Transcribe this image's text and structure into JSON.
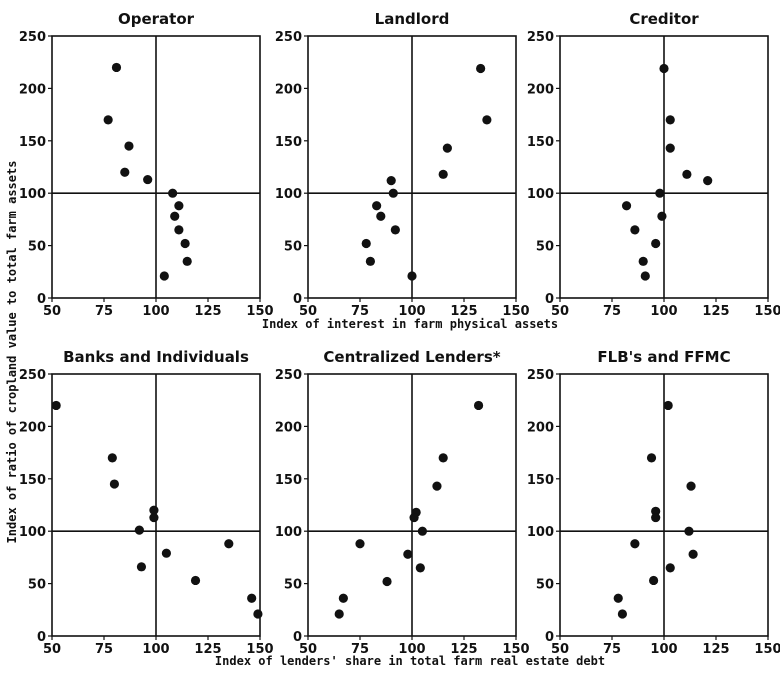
{
  "figure": {
    "ylabel": "Index of ratio of cropland value to total farm assets",
    "top_xlabel": "Index of interest in farm physical assets",
    "bottom_xlabel": "Index of lenders' share in total farm real estate debt"
  },
  "chart_data": [
    {
      "type": "scatter",
      "title": "Operator",
      "xlim": [
        50,
        150
      ],
      "ylim": [
        0,
        250
      ],
      "xticks": [
        50,
        75,
        100,
        125,
        150
      ],
      "yticks": [
        0,
        50,
        100,
        150,
        200,
        250
      ],
      "reference": {
        "x": 100,
        "y": 100
      },
      "grid": false,
      "points": [
        {
          "x": 81,
          "y": 220
        },
        {
          "x": 77,
          "y": 170
        },
        {
          "x": 87,
          "y": 145
        },
        {
          "x": 85,
          "y": 120
        },
        {
          "x": 96,
          "y": 113
        },
        {
          "x": 108,
          "y": 100
        },
        {
          "x": 111,
          "y": 88
        },
        {
          "x": 109,
          "y": 78
        },
        {
          "x": 111,
          "y": 65
        },
        {
          "x": 114,
          "y": 52
        },
        {
          "x": 115,
          "y": 35
        },
        {
          "x": 104,
          "y": 21
        }
      ]
    },
    {
      "type": "scatter",
      "title": "Landlord",
      "xlim": [
        50,
        150
      ],
      "ylim": [
        0,
        250
      ],
      "xticks": [
        50,
        75,
        100,
        125,
        150
      ],
      "yticks": [
        0,
        50,
        100,
        150,
        200,
        250
      ],
      "reference": {
        "x": 100,
        "y": 100
      },
      "grid": false,
      "points": [
        {
          "x": 133,
          "y": 219
        },
        {
          "x": 136,
          "y": 170
        },
        {
          "x": 117,
          "y": 143
        },
        {
          "x": 115,
          "y": 118
        },
        {
          "x": 90,
          "y": 112
        },
        {
          "x": 91,
          "y": 100
        },
        {
          "x": 83,
          "y": 88
        },
        {
          "x": 85,
          "y": 78
        },
        {
          "x": 92,
          "y": 65
        },
        {
          "x": 78,
          "y": 52
        },
        {
          "x": 80,
          "y": 35
        },
        {
          "x": 100,
          "y": 21
        }
      ]
    },
    {
      "type": "scatter",
      "title": "Creditor",
      "xlim": [
        50,
        150
      ],
      "ylim": [
        0,
        250
      ],
      "xticks": [
        50,
        75,
        100,
        125,
        150
      ],
      "yticks": [
        0,
        50,
        100,
        150,
        200,
        250
      ],
      "reference": {
        "x": 100,
        "y": 100
      },
      "grid": false,
      "points": [
        {
          "x": 100,
          "y": 219
        },
        {
          "x": 103,
          "y": 170
        },
        {
          "x": 103,
          "y": 143
        },
        {
          "x": 111,
          "y": 118
        },
        {
          "x": 121,
          "y": 112
        },
        {
          "x": 98,
          "y": 100
        },
        {
          "x": 82,
          "y": 88
        },
        {
          "x": 99,
          "y": 78
        },
        {
          "x": 86,
          "y": 65
        },
        {
          "x": 96,
          "y": 52
        },
        {
          "x": 90,
          "y": 35
        },
        {
          "x": 91,
          "y": 21
        }
      ]
    },
    {
      "type": "scatter",
      "title": "Banks and Individuals",
      "xlim": [
        50,
        150
      ],
      "ylim": [
        0,
        250
      ],
      "xticks": [
        50,
        75,
        100,
        125,
        150
      ],
      "yticks": [
        0,
        50,
        100,
        150,
        200,
        250
      ],
      "reference": {
        "x": 100,
        "y": 100
      },
      "grid": false,
      "points": [
        {
          "x": 52,
          "y": 220
        },
        {
          "x": 79,
          "y": 170
        },
        {
          "x": 80,
          "y": 145
        },
        {
          "x": 99,
          "y": 120
        },
        {
          "x": 99,
          "y": 113
        },
        {
          "x": 92,
          "y": 101
        },
        {
          "x": 135,
          "y": 88
        },
        {
          "x": 105,
          "y": 79
        },
        {
          "x": 93,
          "y": 66
        },
        {
          "x": 119,
          "y": 53
        },
        {
          "x": 146,
          "y": 36
        },
        {
          "x": 149,
          "y": 21
        }
      ]
    },
    {
      "type": "scatter",
      "title": "Centralized Lenders*",
      "xlim": [
        50,
        150
      ],
      "ylim": [
        0,
        250
      ],
      "xticks": [
        50,
        75,
        100,
        125,
        150
      ],
      "yticks": [
        0,
        50,
        100,
        150,
        200,
        250
      ],
      "reference": {
        "x": 100,
        "y": 100
      },
      "grid": false,
      "points": [
        {
          "x": 132,
          "y": 220
        },
        {
          "x": 115,
          "y": 170
        },
        {
          "x": 112,
          "y": 143
        },
        {
          "x": 102,
          "y": 118
        },
        {
          "x": 101,
          "y": 113
        },
        {
          "x": 105,
          "y": 100
        },
        {
          "x": 75,
          "y": 88
        },
        {
          "x": 98,
          "y": 78
        },
        {
          "x": 104,
          "y": 65
        },
        {
          "x": 88,
          "y": 52
        },
        {
          "x": 67,
          "y": 36
        },
        {
          "x": 65,
          "y": 21
        }
      ]
    },
    {
      "type": "scatter",
      "title": "FLB's and FFMC",
      "xlim": [
        50,
        150
      ],
      "ylim": [
        0,
        250
      ],
      "xticks": [
        50,
        75,
        100,
        125,
        150
      ],
      "yticks": [
        0,
        50,
        100,
        150,
        200,
        250
      ],
      "reference": {
        "x": 100,
        "y": 100
      },
      "grid": false,
      "points": [
        {
          "x": 102,
          "y": 220
        },
        {
          "x": 94,
          "y": 170
        },
        {
          "x": 113,
          "y": 143
        },
        {
          "x": 96,
          "y": 119
        },
        {
          "x": 96,
          "y": 113
        },
        {
          "x": 112,
          "y": 100
        },
        {
          "x": 86,
          "y": 88
        },
        {
          "x": 114,
          "y": 78
        },
        {
          "x": 103,
          "y": 65
        },
        {
          "x": 95,
          "y": 53
        },
        {
          "x": 78,
          "y": 36
        },
        {
          "x": 80,
          "y": 21
        }
      ]
    }
  ]
}
